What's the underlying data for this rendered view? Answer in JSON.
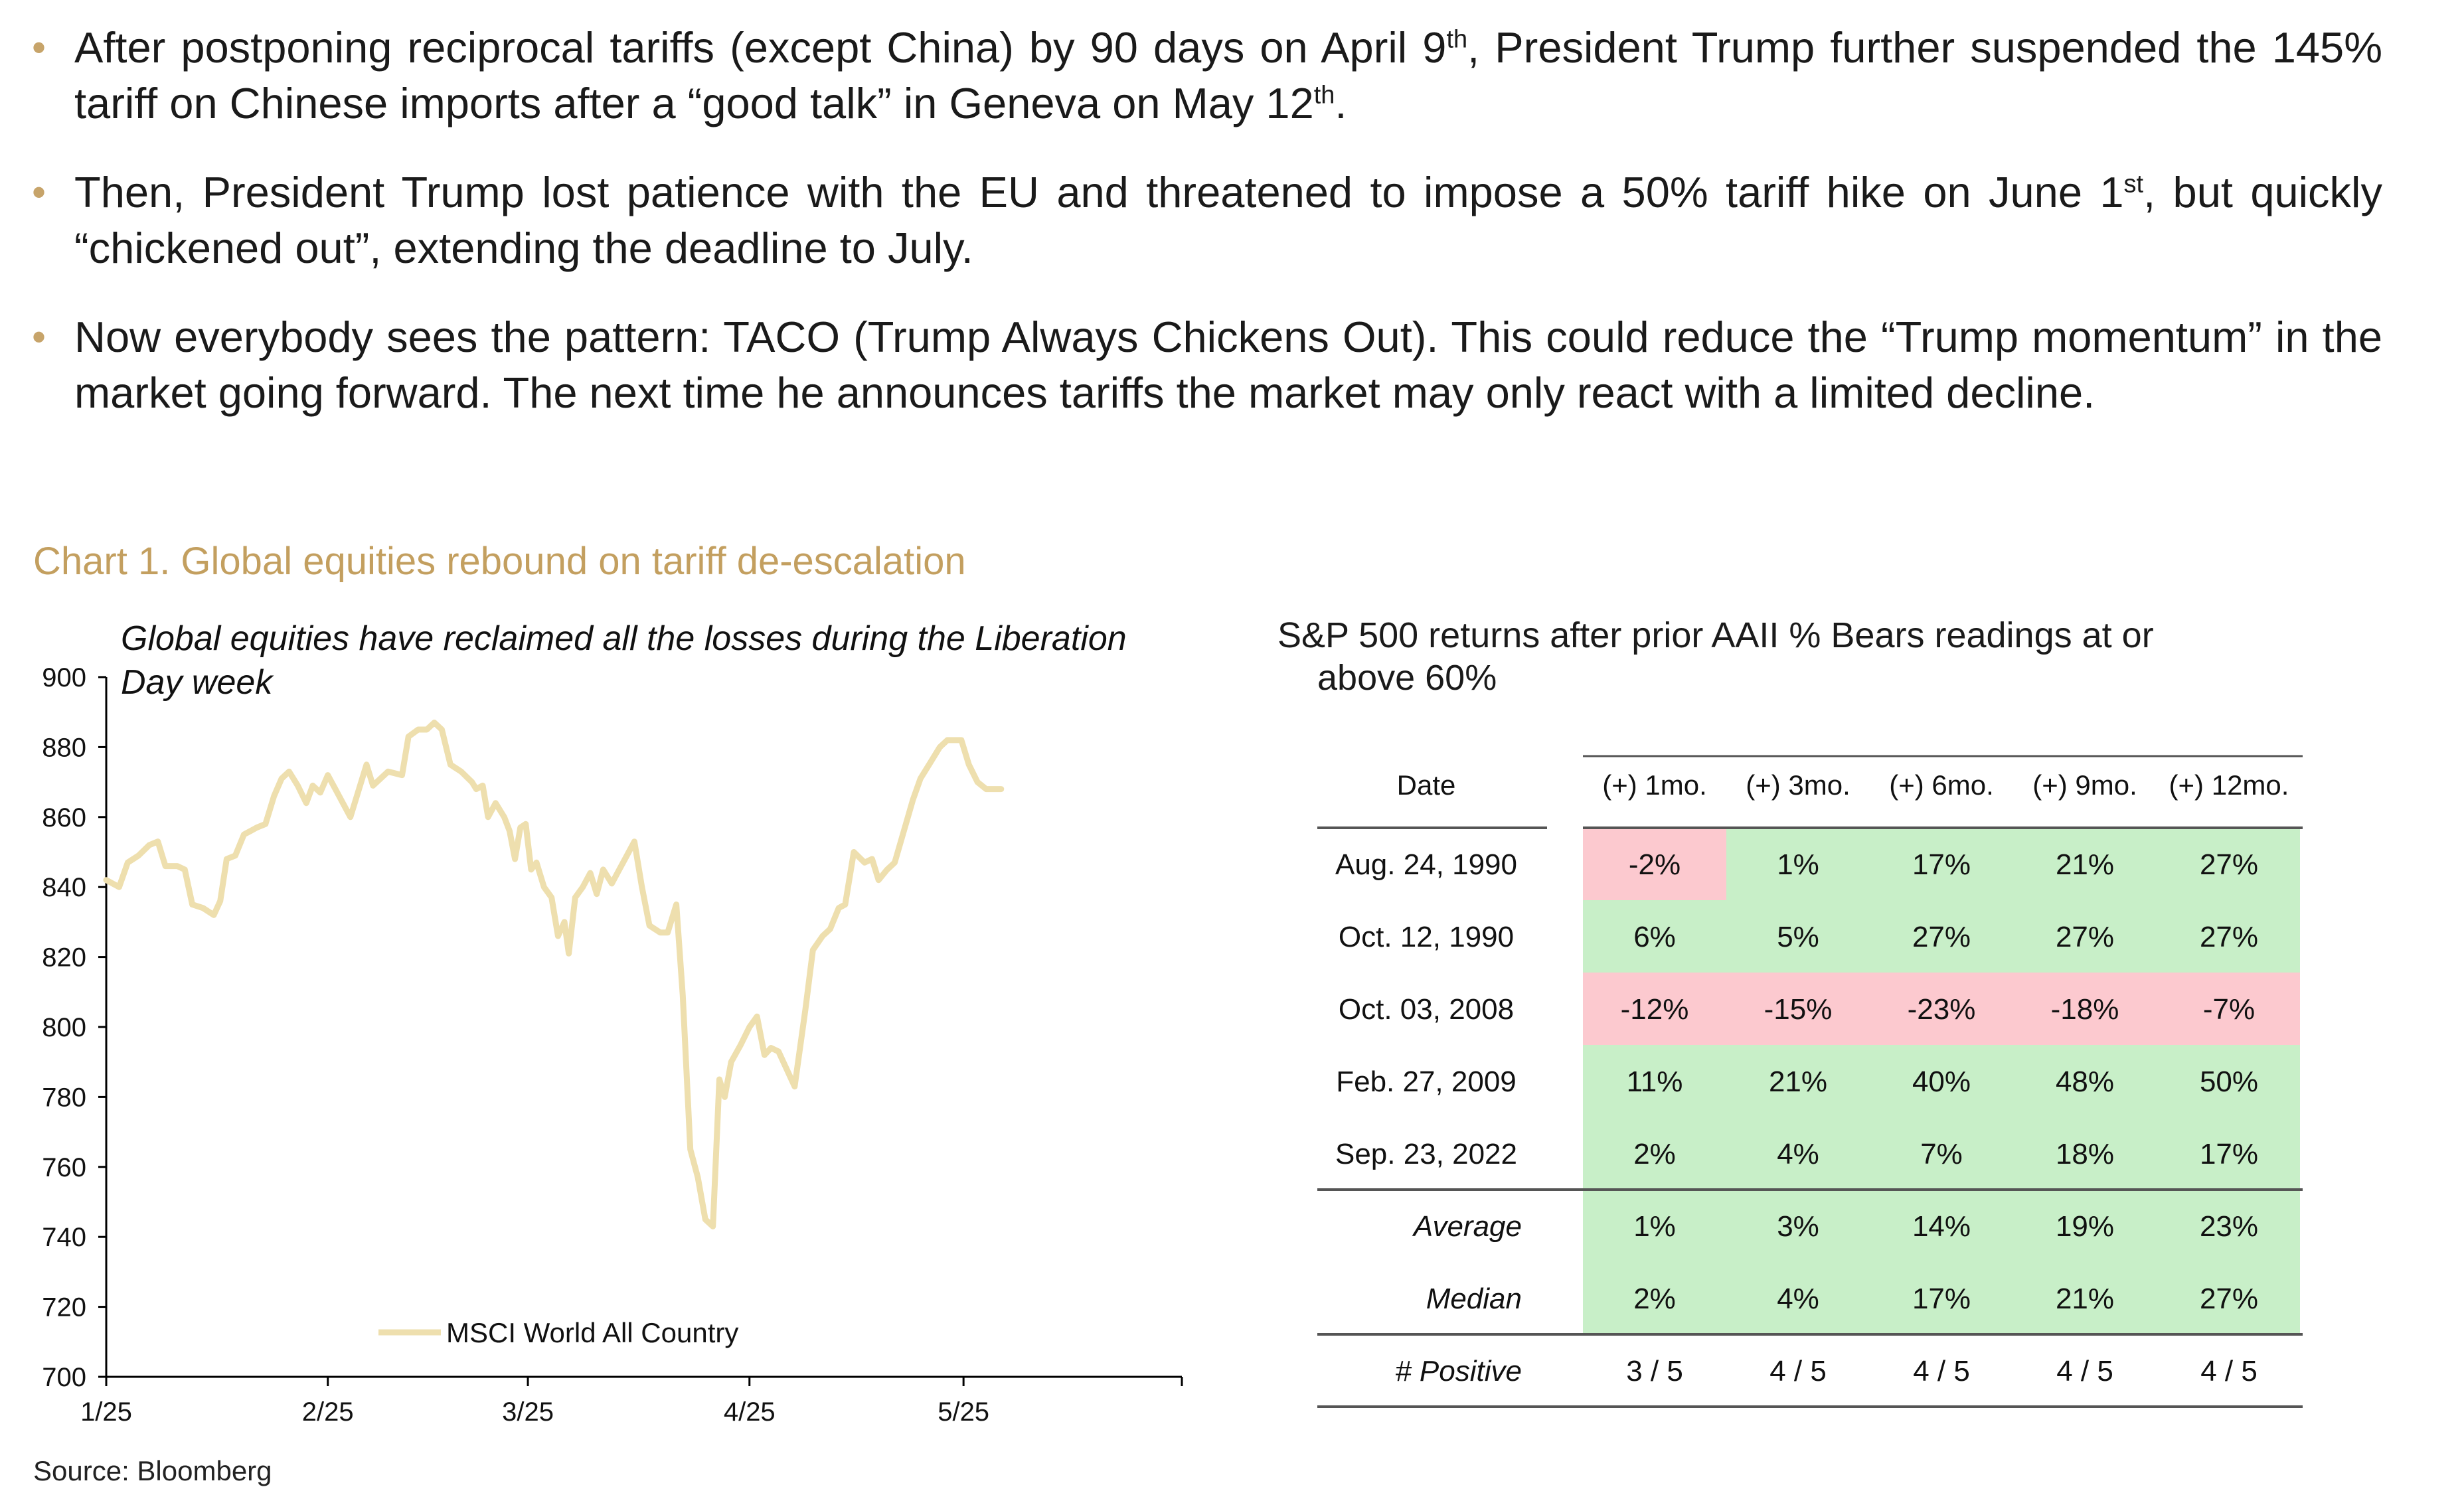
{
  "bullets": [
    {
      "parts": [
        "After postponing reciprocal tariffs (except China) by 90 days on April 9",
        "th",
        ", President Trump further suspended the 145% tariff on Chinese imports after a “good talk” in Geneva on May 12",
        "th",
        "."
      ]
    },
    {
      "parts": [
        "Then, President Trump lost patience with the EU and threatened to impose a 50% tariff hike on June 1",
        "st",
        ", but quickly “chickened out”, extending the deadline to July."
      ]
    },
    {
      "parts": [
        "Now everybody sees the pattern: TACO (Trump Always Chickens Out). This could reduce the “Trump momentum” in the market going forward. The next time he announces tariffs the market may only react with a limited decline."
      ]
    }
  ],
  "chart_title": "Chart 1. Global equities rebound on tariff de-escalation",
  "source": "Source: Bloomberg",
  "colors": {
    "accent": "#c39f5f",
    "line": "#eedfae",
    "green": "#c8efc8",
    "red": "#fcc9cf"
  },
  "chart_data": [
    {
      "type": "line",
      "annotation": "Global equities have reclaimed all the losses during the Liberation Day week",
      "annotation_lines": [
        "Global equities have reclaimed all the losses during the Liberation",
        "Day week"
      ],
      "xlabel": "",
      "ylabel": "",
      "ylim": [
        700,
        900
      ],
      "yticks": [
        700,
        720,
        740,
        760,
        780,
        800,
        820,
        840,
        860,
        880,
        900
      ],
      "xlim": [
        0,
        1
      ],
      "xticks": [
        {
          "label": "1/25",
          "value": 0.0
        },
        {
          "label": "2/25",
          "value": 0.206
        },
        {
          "label": "3/25",
          "value": 0.392
        },
        {
          "label": "4/25",
          "value": 0.598
        },
        {
          "label": "5/25",
          "value": 0.797
        },
        {
          "label": "",
          "value": 1.0
        }
      ],
      "legend": {
        "label": "MSCI World All Country",
        "position": "bottom-center"
      },
      "series": [
        {
          "name": "MSCI World All Country",
          "values": [
            [
              0.0,
              842
            ],
            [
              0.012,
              840
            ],
            [
              0.02,
              847
            ],
            [
              0.03,
              849
            ],
            [
              0.04,
              852
            ],
            [
              0.048,
              853
            ],
            [
              0.055,
              846
            ],
            [
              0.066,
              846
            ],
            [
              0.073,
              845
            ],
            [
              0.08,
              835
            ],
            [
              0.09,
              834
            ],
            [
              0.1,
              832
            ],
            [
              0.106,
              836
            ],
            [
              0.112,
              848
            ],
            [
              0.12,
              849
            ],
            [
              0.128,
              855
            ],
            [
              0.14,
              857
            ],
            [
              0.148,
              858
            ],
            [
              0.156,
              866
            ],
            [
              0.163,
              871
            ],
            [
              0.17,
              873
            ],
            [
              0.178,
              869
            ],
            [
              0.186,
              864
            ],
            [
              0.192,
              869
            ],
            [
              0.199,
              867
            ],
            [
              0.206,
              872
            ],
            [
              0.213,
              868
            ],
            [
              0.22,
              864
            ],
            [
              0.227,
              860
            ],
            [
              0.235,
              868
            ],
            [
              0.242,
              875
            ],
            [
              0.248,
              869
            ],
            [
              0.255,
              871
            ],
            [
              0.262,
              873
            ],
            [
              0.275,
              872
            ],
            [
              0.281,
              883
            ],
            [
              0.29,
              885
            ],
            [
              0.298,
              885
            ],
            [
              0.305,
              887
            ],
            [
              0.312,
              885
            ],
            [
              0.32,
              875
            ],
            [
              0.33,
              873
            ],
            [
              0.34,
              870
            ],
            [
              0.344,
              868
            ],
            [
              0.35,
              869
            ],
            [
              0.355,
              860
            ],
            [
              0.362,
              864
            ],
            [
              0.37,
              860
            ],
            [
              0.375,
              856
            ],
            [
              0.38,
              848
            ],
            [
              0.385,
              857
            ],
            [
              0.39,
              858
            ],
            [
              0.395,
              845
            ],
            [
              0.4,
              847
            ],
            [
              0.407,
              840
            ],
            [
              0.414,
              837
            ],
            [
              0.42,
              826
            ],
            [
              0.426,
              830
            ],
            [
              0.43,
              821
            ],
            [
              0.436,
              837
            ],
            [
              0.443,
              840
            ],
            [
              0.45,
              844
            ],
            [
              0.456,
              838
            ],
            [
              0.462,
              845
            ],
            [
              0.47,
              841
            ],
            [
              0.477,
              845
            ],
            [
              0.484,
              849
            ],
            [
              0.491,
              853
            ],
            [
              0.498,
              840
            ],
            [
              0.505,
              829
            ],
            [
              0.515,
              827
            ],
            [
              0.522,
              827
            ],
            [
              0.53,
              835
            ],
            [
              0.536,
              809
            ],
            [
              0.543,
              765
            ],
            [
              0.55,
              757
            ],
            [
              0.557,
              745
            ],
            [
              0.564,
              743
            ],
            [
              0.57,
              785
            ],
            [
              0.575,
              780
            ],
            [
              0.581,
              790
            ],
            [
              0.59,
              795
            ],
            [
              0.598,
              800
            ],
            [
              0.605,
              803
            ],
            [
              0.612,
              792
            ],
            [
              0.618,
              794
            ],
            [
              0.625,
              793
            ],
            [
              0.64,
              783
            ],
            [
              0.65,
              805
            ],
            [
              0.657,
              822
            ],
            [
              0.666,
              826
            ],
            [
              0.673,
              828
            ],
            [
              0.681,
              834
            ],
            [
              0.687,
              835
            ],
            [
              0.695,
              850
            ],
            [
              0.705,
              847
            ],
            [
              0.712,
              848
            ],
            [
              0.718,
              842
            ],
            [
              0.726,
              845
            ],
            [
              0.733,
              847
            ],
            [
              0.75,
              865
            ],
            [
              0.757,
              871
            ],
            [
              0.765,
              875
            ],
            [
              0.775,
              880
            ],
            [
              0.782,
              882
            ],
            [
              0.795,
              882
            ],
            [
              0.802,
              875
            ],
            [
              0.81,
              870
            ],
            [
              0.818,
              868
            ],
            [
              0.832,
              868
            ]
          ]
        }
      ]
    },
    {
      "type": "table",
      "title": "S&P 500 returns after prior AAII % Bears readings at or above 60%",
      "title_lines": [
        "S&P 500 returns after prior AAII % Bears readings at or",
        "above 60%"
      ],
      "columns": [
        "Date",
        "(+) 1mo.",
        "(+) 3mo.",
        "(+) 6mo.",
        "(+) 9mo.",
        "(+) 12mo."
      ],
      "rows": [
        {
          "label": "Aug. 24, 1990",
          "values": [
            "-2%",
            "1%",
            "17%",
            "21%",
            "27%"
          ],
          "fills": [
            "red",
            "green",
            "green",
            "green",
            "green"
          ]
        },
        {
          "label": "Oct. 12, 1990",
          "values": [
            "6%",
            "5%",
            "27%",
            "27%",
            "27%"
          ],
          "fills": [
            "green",
            "green",
            "green",
            "green",
            "green"
          ]
        },
        {
          "label": "Oct. 03, 2008",
          "values": [
            "-12%",
            "-15%",
            "-23%",
            "-18%",
            "-7%"
          ],
          "fills": [
            "red",
            "red",
            "red",
            "red",
            "red"
          ]
        },
        {
          "label": "Feb. 27, 2009",
          "values": [
            "11%",
            "21%",
            "40%",
            "48%",
            "50%"
          ],
          "fills": [
            "green",
            "green",
            "green",
            "green",
            "green"
          ]
        },
        {
          "label": "Sep. 23, 2022",
          "values": [
            "2%",
            "4%",
            "7%",
            "18%",
            "17%"
          ],
          "fills": [
            "green",
            "green",
            "green",
            "green",
            "green"
          ]
        }
      ],
      "summary": [
        {
          "label": "Average",
          "values": [
            "1%",
            "3%",
            "14%",
            "19%",
            "23%"
          ],
          "fills": [
            "green",
            "green",
            "green",
            "green",
            "green"
          ]
        },
        {
          "label": "Median",
          "values": [
            "2%",
            "4%",
            "17%",
            "21%",
            "27%"
          ],
          "fills": [
            "green",
            "green",
            "green",
            "green",
            "green"
          ]
        }
      ],
      "positive": {
        "label": "# Positive",
        "values": [
          "3 / 5",
          "4 / 5",
          "4 / 5",
          "4 / 5",
          "4 / 5"
        ]
      }
    }
  ]
}
